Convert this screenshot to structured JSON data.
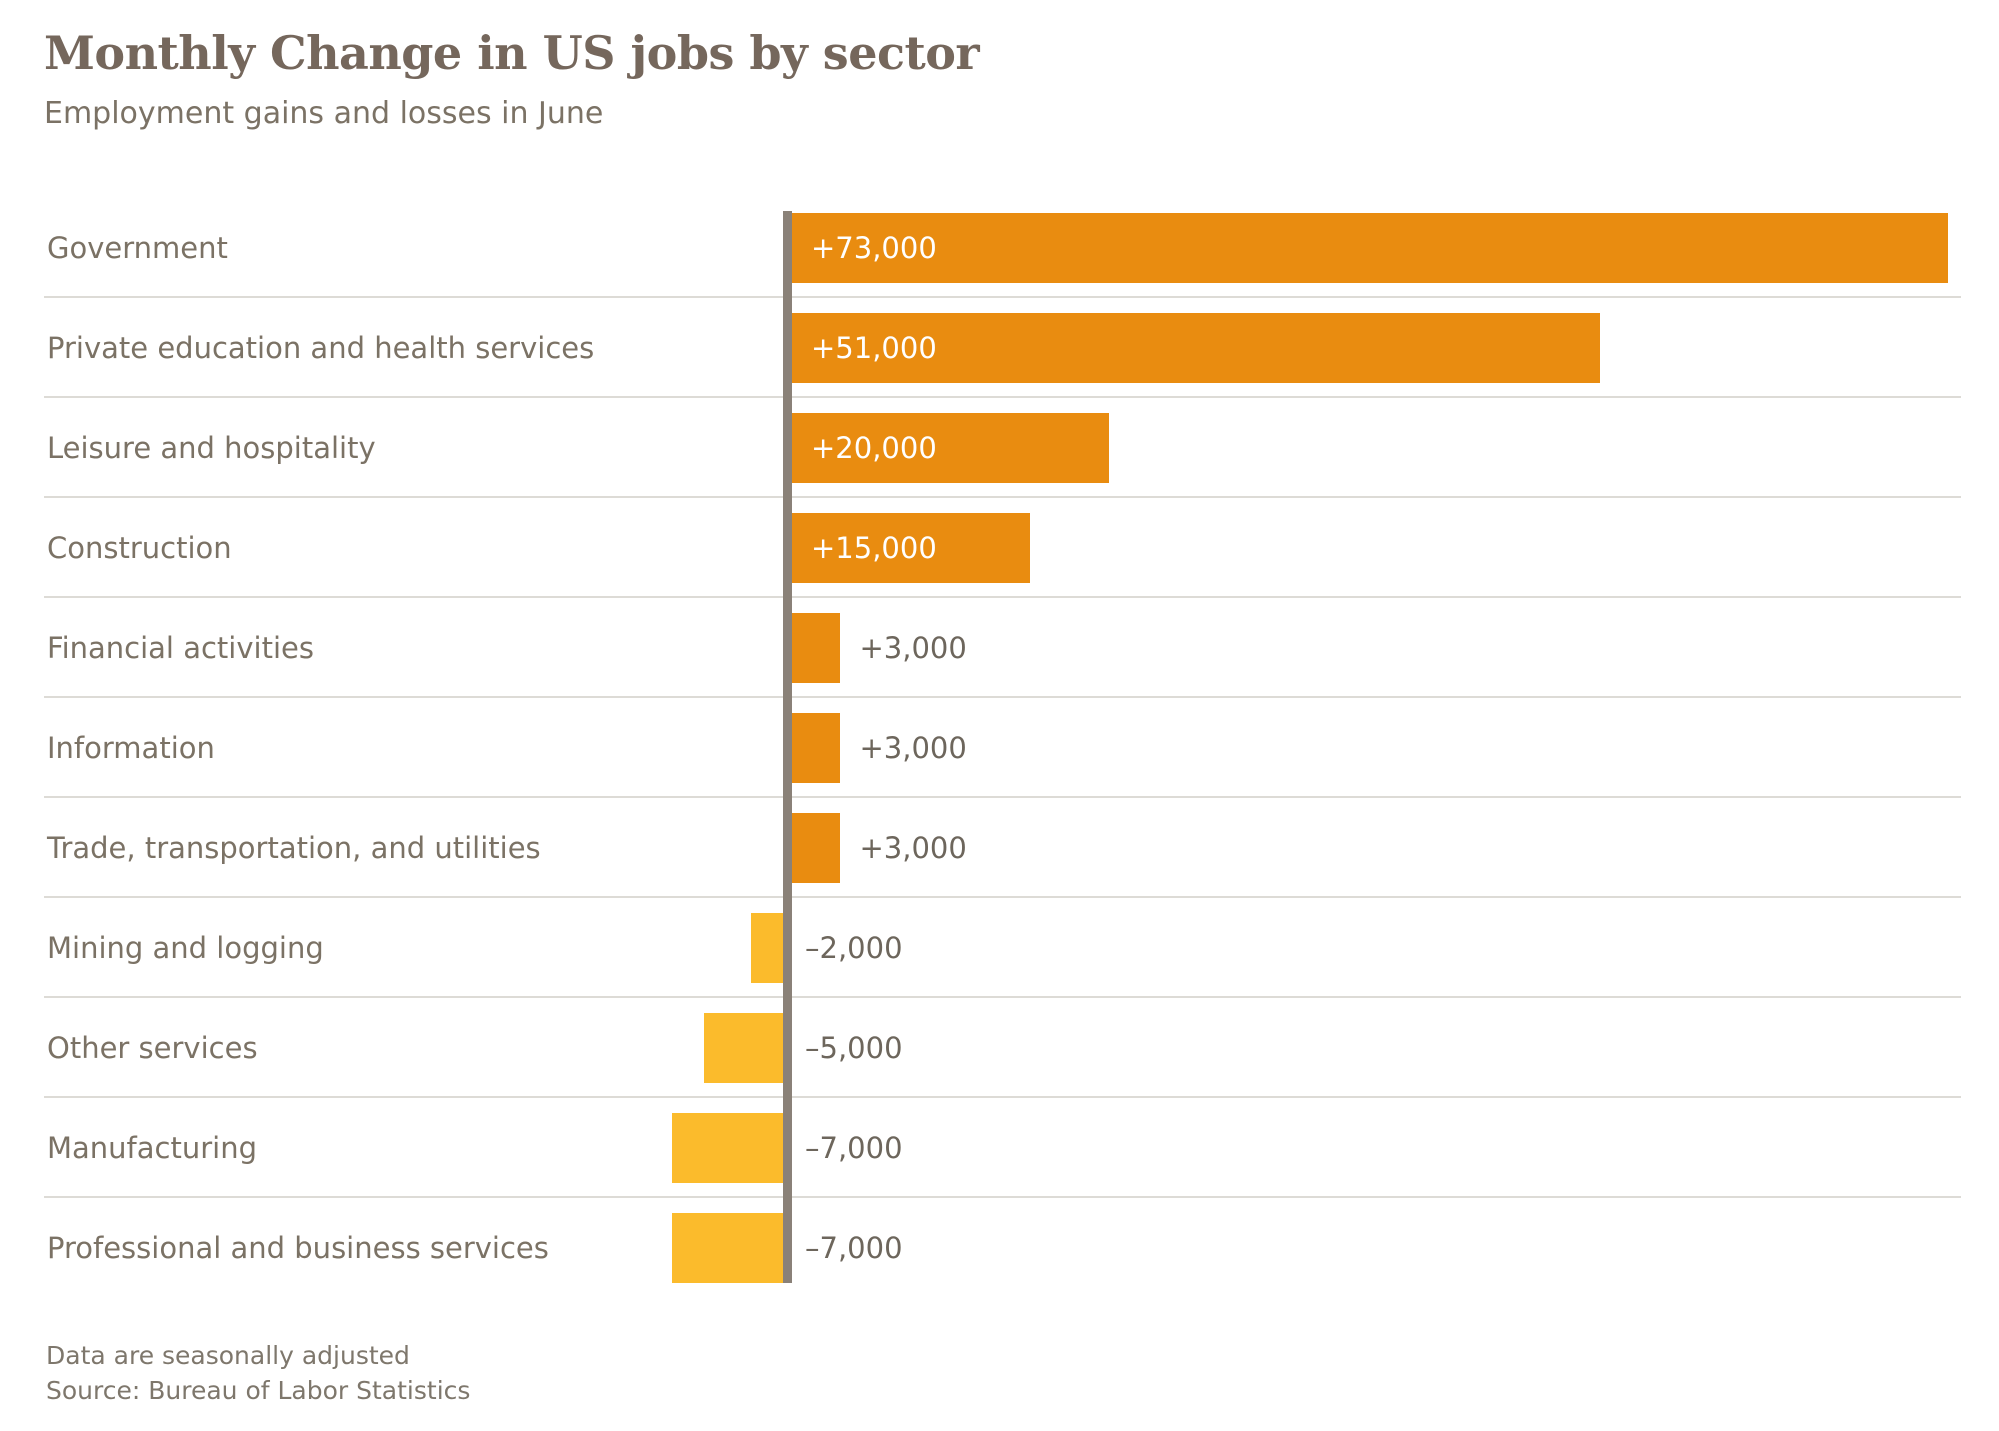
{
  "colors": {
    "positive_bar": "#E98C10",
    "negative_bar": "#FBBB2C",
    "axis": "#8A8178",
    "separator": "#DDDBD6",
    "title_text": "#75675C",
    "label_text": "#7B7265",
    "value_text_inside": "#FFFFFF",
    "value_text_outside": "#6D665C",
    "footer_text": "#7E776C"
  },
  "footer": {
    "note": "Data are seasonally adjusted",
    "source": "Source: Bureau of Labor Statistics"
  },
  "chart_data": {
    "type": "bar",
    "orientation": "horizontal",
    "title": "Monthly Change in US jobs by sector",
    "subtitle": "Employment gains and losses in June",
    "categories": [
      "Government",
      "Private education and health services",
      "Leisure and hospitality",
      "Construction",
      "Financial activities",
      "Information",
      "Trade, transportation, and utilities",
      "Mining and logging",
      "Other services",
      "Manufacturing",
      "Professional and business services"
    ],
    "values": [
      73000,
      51000,
      20000,
      15000,
      3000,
      3000,
      3000,
      -2000,
      -5000,
      -7000,
      -7000
    ],
    "value_labels": [
      "+73,000",
      "+51,000",
      "+20,000",
      "+15,000",
      "+3,000",
      "+3,000",
      "+3,000",
      "–2,000",
      "–5,000",
      "–7,000",
      "–7,000"
    ],
    "xlim": [
      -12000,
      74000
    ],
    "zero_axis": true,
    "grid": "row-separators-only",
    "legend": "none",
    "units": "jobs"
  }
}
